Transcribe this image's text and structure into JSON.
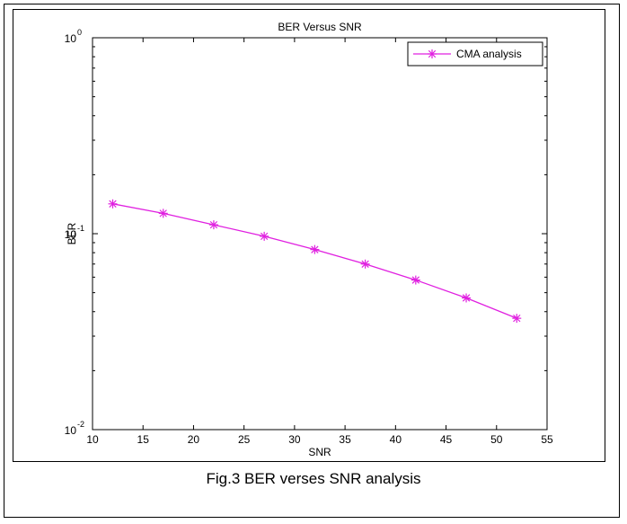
{
  "chart_data": {
    "type": "line",
    "title": "BER Versus SNR",
    "xlabel": "SNR",
    "ylabel": "BER",
    "y_scale": "log",
    "xlim": [
      10,
      55
    ],
    "ylim": [
      0.01,
      1
    ],
    "x_ticks": [
      "10",
      "15",
      "20",
      "25",
      "30",
      "35",
      "40",
      "45",
      "50",
      "55"
    ],
    "y_ticks": [
      {
        "base": "10",
        "exp": "-2",
        "value": 0.01
      },
      {
        "base": "10",
        "exp": "-1",
        "value": 0.1
      },
      {
        "base": "10",
        "exp": "0",
        "value": 1
      }
    ],
    "grid": false,
    "legend_position": "top-right",
    "series": [
      {
        "name": "CMA analysis",
        "color": "#e020e0",
        "marker": "asterisk",
        "x": [
          12,
          17,
          22,
          27,
          32,
          37,
          42,
          47,
          52
        ],
        "y": [
          0.142,
          0.127,
          0.111,
          0.097,
          0.083,
          0.07,
          0.058,
          0.047,
          0.037
        ]
      }
    ]
  },
  "caption": "Fig.3 BER verses SNR analysis"
}
